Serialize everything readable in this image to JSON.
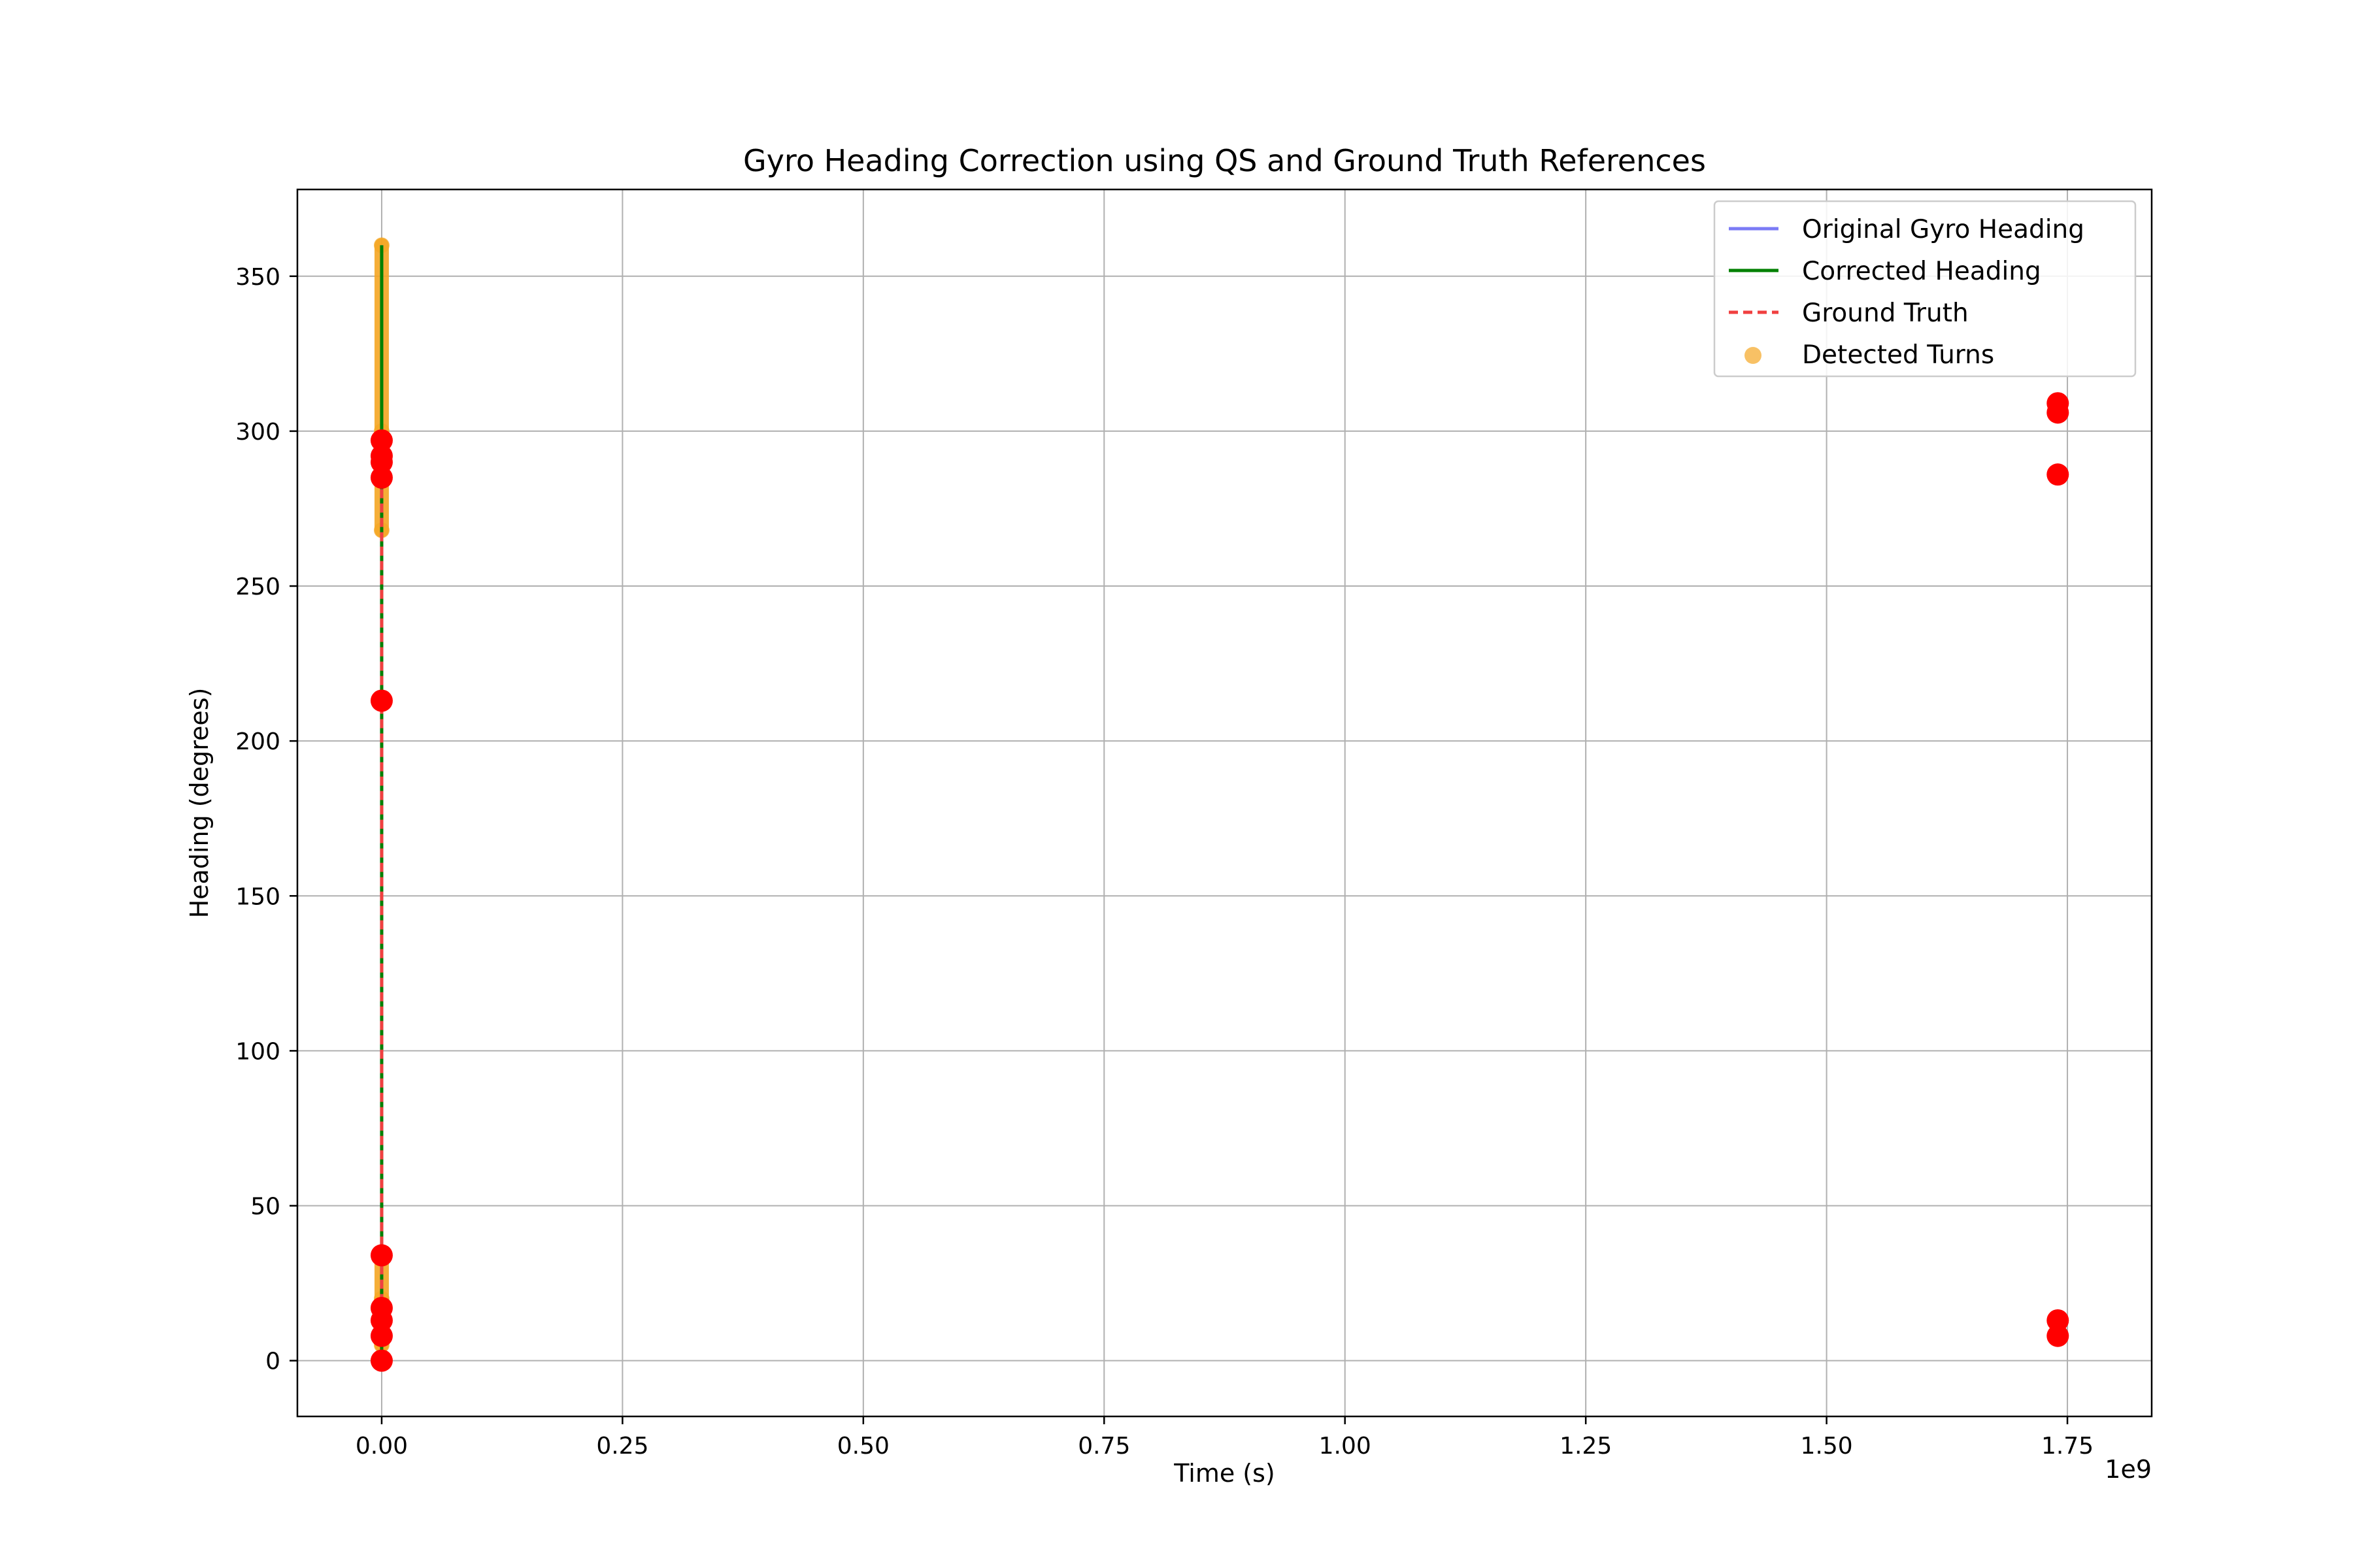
{
  "chart_data": {
    "type": "line",
    "title": "Gyro Heading Correction using QS and Ground Truth References",
    "xlabel": "Time (s)",
    "ylabel": "Heading (degrees)",
    "x_offset_text": "1e9",
    "xlim": [
      -0.0875,
      1.8375
    ],
    "ylim": [
      -18,
      378
    ],
    "x_ticks": [
      0.0,
      0.25,
      0.5,
      0.75,
      1.0,
      1.25,
      1.5,
      1.75
    ],
    "x_tick_labels": [
      "0.00",
      "0.25",
      "0.50",
      "0.75",
      "1.00",
      "1.25",
      "1.50",
      "1.75"
    ],
    "y_ticks": [
      0,
      50,
      100,
      150,
      200,
      250,
      300,
      350
    ],
    "y_tick_labels": [
      "0",
      "50",
      "100",
      "150",
      "200",
      "250",
      "300",
      "350"
    ],
    "grid": true,
    "legend_position": "top-right",
    "series": [
      {
        "name": "Original Gyro Heading",
        "color": "#7b7bf5",
        "style": "solid",
        "x": [
          0,
          0
        ],
        "y": [
          0,
          360
        ]
      },
      {
        "name": "Corrected Heading",
        "color": "#008000",
        "style": "solid",
        "x": [
          0,
          0
        ],
        "y": [
          0,
          360
        ]
      },
      {
        "name": "Ground Truth",
        "color": "#f04040",
        "style": "dashed",
        "x": [
          0,
          0
        ],
        "y": [
          0,
          297
        ]
      },
      {
        "name": "Detected Turns",
        "color": "#f5a623",
        "style": "scatter",
        "x": [
          0,
          0,
          0,
          0,
          0
        ],
        "y": [
          5,
          20,
          268,
          300,
          360
        ]
      }
    ],
    "reference_points": {
      "color": "#ff0000",
      "x": [
        0,
        0,
        0,
        0,
        0,
        0,
        0,
        0,
        0,
        0,
        1.74,
        1.74,
        1.74,
        1.74,
        1.74
      ],
      "y": [
        0,
        8,
        13,
        17,
        34,
        213,
        285,
        290,
        292,
        297,
        309,
        306,
        286,
        13,
        8
      ]
    }
  }
}
